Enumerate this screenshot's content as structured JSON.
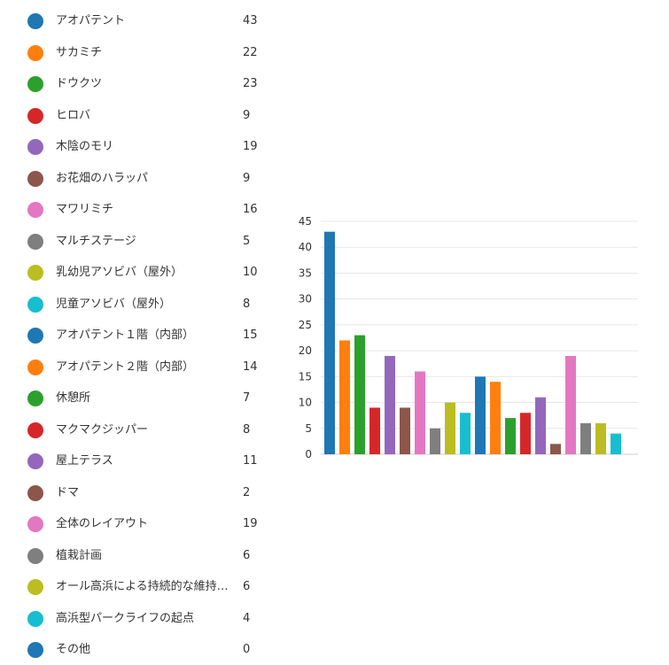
{
  "chart_data": {
    "type": "bar",
    "categories": [
      "アオパテント",
      "サカミチ",
      "ドウクツ",
      "ヒロバ",
      "木陰のモリ",
      "お花畑のハラッパ",
      "マワリミチ",
      "マルチステージ",
      "乳幼児アソビバ（屋外）",
      "児童アソビバ（屋外）",
      "アオパテント１階（内部）",
      "アオパテント２階（内部）",
      "休憩所",
      "マクマクジッパー",
      "屋上テラス",
      "ドマ",
      "全体のレイアウト",
      "植栽計画",
      "オール高浜による持続的な維持管…",
      "高浜型パークライフの起点",
      "その他"
    ],
    "values": [
      43,
      22,
      23,
      9,
      19,
      9,
      16,
      5,
      10,
      8,
      15,
      14,
      7,
      8,
      11,
      2,
      19,
      6,
      6,
      4,
      0
    ],
    "colors": [
      "#1f77b4",
      "#ff7f0e",
      "#2ca02c",
      "#d62728",
      "#9467bd",
      "#8c564b",
      "#e377c2",
      "#7f7f7f",
      "#bcbd22",
      "#17becf",
      "#1f77b4",
      "#ff7f0e",
      "#2ca02c",
      "#d62728",
      "#9467bd",
      "#8c564b",
      "#e377c2",
      "#7f7f7f",
      "#bcbd22",
      "#17becf",
      "#1f77b4"
    ],
    "ylim": [
      0,
      45
    ],
    "yticks": [
      0,
      5,
      10,
      15,
      20,
      25,
      30,
      35,
      40,
      45
    ],
    "grid": true,
    "legend_placement": "left"
  }
}
